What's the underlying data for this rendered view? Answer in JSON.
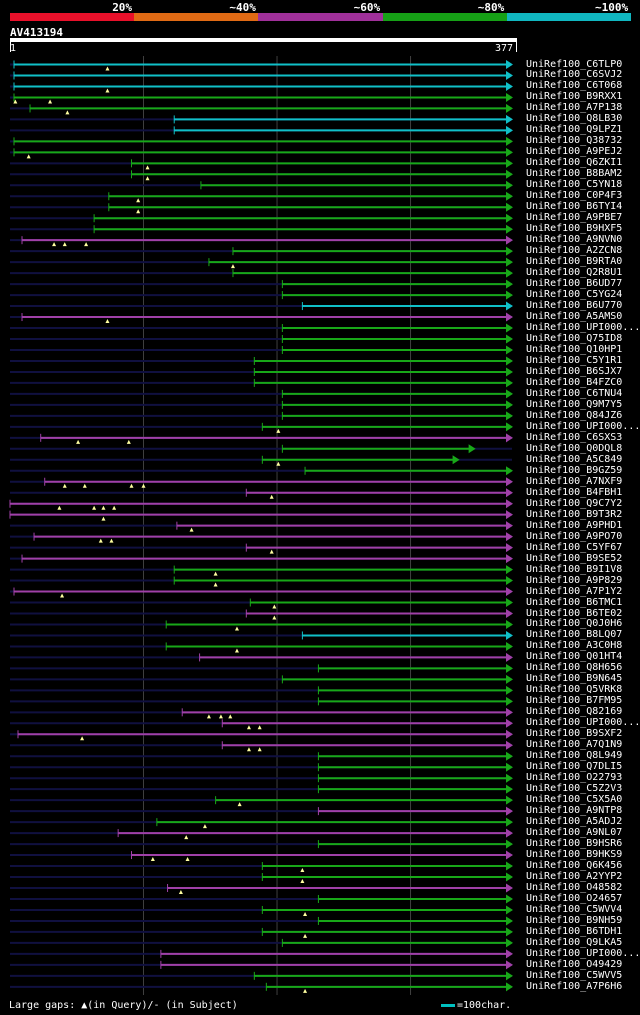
{
  "title": "AV413194",
  "legend": [
    {
      "label": "20%",
      "color": "#e8102a"
    },
    {
      "label": "~40%",
      "color": "#e06a14"
    },
    {
      "label": "~60%",
      "color": "#a0309a"
    },
    {
      "label": "~80%",
      "color": "#16a016"
    },
    {
      "label": "~100%",
      "color": "#10b6c0"
    }
  ],
  "axis": {
    "start": "1",
    "end": "377",
    "query_length": 377
  },
  "colors": {
    "cyan": "#10c0c8",
    "green": "#18a818",
    "magenta": "#a040a8",
    "faint": "#101040",
    "grid": "#404040"
  },
  "footer": "Large gaps: ▲(in Query)/- (in Subject)",
  "scale_label": "=100char.",
  "chart_data": {
    "type": "alignment",
    "hits": [
      {
        "name": "UniRef100_C6TLP0",
        "color": "cyan",
        "start": 4,
        "end": 377,
        "arrow": true,
        "marks": [
          74
        ]
      },
      {
        "name": "UniRef100_C6SVJ2",
        "color": "cyan",
        "start": 4,
        "end": 377,
        "arrow": true,
        "marks": []
      },
      {
        "name": "UniRef100_C6T068",
        "color": "cyan",
        "start": 4,
        "end": 377,
        "arrow": true,
        "marks": [
          74
        ]
      },
      {
        "name": "UniRef100_B9RXX1",
        "color": "green",
        "start": 4,
        "end": 377,
        "arrow": true,
        "marks": [
          5,
          31
        ]
      },
      {
        "name": "UniRef100_A7P138",
        "color": "green",
        "start": 16,
        "end": 377,
        "arrow": true,
        "marks": [
          44
        ]
      },
      {
        "name": "UniRef100_Q8LB30",
        "color": "cyan",
        "start": 124,
        "end": 377,
        "arrow": true,
        "marks": []
      },
      {
        "name": "UniRef100_Q9LPZ1",
        "color": "cyan",
        "start": 124,
        "end": 377,
        "arrow": true,
        "marks": []
      },
      {
        "name": "UniRef100_Q38732",
        "color": "green",
        "start": 4,
        "end": 377,
        "arrow": true,
        "marks": []
      },
      {
        "name": "UniRef100_A9PEJ2",
        "color": "green",
        "start": 4,
        "end": 377,
        "arrow": true,
        "marks": [
          15
        ]
      },
      {
        "name": "UniRef100_Q6ZKI1",
        "color": "green",
        "start": 92,
        "end": 377,
        "arrow": true,
        "marks": [
          104
        ]
      },
      {
        "name": "UniRef100_B8BAM2",
        "color": "green",
        "start": 92,
        "end": 377,
        "arrow": true,
        "marks": [
          104
        ]
      },
      {
        "name": "UniRef100_C5YN18",
        "color": "green",
        "start": 144,
        "end": 377,
        "arrow": true,
        "marks": []
      },
      {
        "name": "UniRef100_C0P4F3",
        "color": "green",
        "start": 75,
        "end": 377,
        "arrow": true,
        "marks": [
          97
        ]
      },
      {
        "name": "UniRef100_B6TYI4",
        "color": "green",
        "start": 75,
        "end": 377,
        "arrow": true,
        "marks": [
          97
        ]
      },
      {
        "name": "UniRef100_A9PBE7",
        "color": "green",
        "start": 64,
        "end": 377,
        "arrow": true,
        "marks": []
      },
      {
        "name": "UniRef100_B9HXF5",
        "color": "green",
        "start": 64,
        "end": 377,
        "arrow": true,
        "marks": []
      },
      {
        "name": "UniRef100_A9NVN0",
        "color": "magenta",
        "start": 10,
        "end": 377,
        "arrow": true,
        "marks": [
          34,
          42,
          58
        ]
      },
      {
        "name": "UniRef100_A2ZCN8",
        "color": "green",
        "start": 168,
        "end": 377,
        "arrow": true,
        "marks": []
      },
      {
        "name": "UniRef100_B9RTA0",
        "color": "green",
        "start": 150,
        "end": 377,
        "arrow": true,
        "marks": [
          168
        ]
      },
      {
        "name": "UniRef100_Q2R8U1",
        "color": "green",
        "start": 168,
        "end": 377,
        "arrow": true,
        "marks": []
      },
      {
        "name": "UniRef100_B6UD77",
        "color": "green",
        "start": 205,
        "end": 377,
        "arrow": true,
        "marks": []
      },
      {
        "name": "UniRef100_C5YG24",
        "color": "green",
        "start": 205,
        "end": 377,
        "arrow": true,
        "marks": []
      },
      {
        "name": "UniRef100_B6U770",
        "color": "cyan",
        "start": 220,
        "end": 377,
        "arrow": true,
        "marks": []
      },
      {
        "name": "UniRef100_A5AMS0",
        "color": "magenta",
        "start": 10,
        "end": 377,
        "arrow": true,
        "marks": [
          74
        ]
      },
      {
        "name": "UniRef100_UPI000...",
        "color": "green",
        "start": 205,
        "end": 377,
        "arrow": true,
        "marks": []
      },
      {
        "name": "UniRef100_Q75ID8",
        "color": "green",
        "start": 205,
        "end": 377,
        "arrow": true,
        "marks": []
      },
      {
        "name": "UniRef100_Q10HP1",
        "color": "green",
        "start": 205,
        "end": 377,
        "arrow": true,
        "marks": []
      },
      {
        "name": "UniRef100_C5Y1R1",
        "color": "green",
        "start": 184,
        "end": 377,
        "arrow": true,
        "marks": []
      },
      {
        "name": "UniRef100_B6SJX7",
        "color": "green",
        "start": 184,
        "end": 377,
        "arrow": true,
        "marks": []
      },
      {
        "name": "UniRef100_B4FZC0",
        "color": "green",
        "start": 184,
        "end": 377,
        "arrow": true,
        "marks": []
      },
      {
        "name": "UniRef100_C6TNU4",
        "color": "green",
        "start": 205,
        "end": 377,
        "arrow": true,
        "marks": []
      },
      {
        "name": "UniRef100_Q9M7Y5",
        "color": "green",
        "start": 205,
        "end": 377,
        "arrow": true,
        "marks": []
      },
      {
        "name": "UniRef100_Q84JZ6",
        "color": "green",
        "start": 205,
        "end": 377,
        "arrow": true,
        "marks": []
      },
      {
        "name": "UniRef100_UPI000...",
        "color": "green",
        "start": 190,
        "end": 377,
        "arrow": true,
        "marks": [
          202
        ]
      },
      {
        "name": "UniRef100_C6SXS3",
        "color": "magenta",
        "start": 24,
        "end": 377,
        "arrow": true,
        "marks": [
          52,
          90
        ]
      },
      {
        "name": "UniRef100_Q0DQL8",
        "color": "green",
        "start": 205,
        "end": 349,
        "arrow": true,
        "marks": []
      },
      {
        "name": "UniRef100_A5C849",
        "color": "green",
        "start": 190,
        "end": 337,
        "arrow": true,
        "marks": [
          202
        ]
      },
      {
        "name": "UniRef100_B9GZ59",
        "color": "green",
        "start": 222,
        "end": 377,
        "arrow": true,
        "marks": []
      },
      {
        "name": "UniRef100_A7NXF9",
        "color": "magenta",
        "start": 27,
        "end": 377,
        "arrow": true,
        "marks": [
          42,
          57,
          92,
          101
        ]
      },
      {
        "name": "UniRef100_B4FBH1",
        "color": "magenta",
        "start": 178,
        "end": 377,
        "arrow": true,
        "marks": [
          197
        ]
      },
      {
        "name": "UniRef100_Q9C7Y2",
        "color": "magenta",
        "start": 1,
        "end": 377,
        "arrow": true,
        "marks": [
          38,
          64,
          71,
          79
        ]
      },
      {
        "name": "UniRef100_B9T3R2",
        "color": "magenta",
        "start": 1,
        "end": 377,
        "arrow": true,
        "marks": [
          71
        ]
      },
      {
        "name": "UniRef100_A9PHD1",
        "color": "magenta",
        "start": 126,
        "end": 377,
        "arrow": true,
        "marks": [
          137
        ]
      },
      {
        "name": "UniRef100_A9PO70",
        "color": "magenta",
        "start": 19,
        "end": 377,
        "arrow": true,
        "marks": [
          69,
          77
        ]
      },
      {
        "name": "UniRef100_C5YF67",
        "color": "magenta",
        "start": 178,
        "end": 377,
        "arrow": true,
        "marks": [
          197
        ]
      },
      {
        "name": "UniRef100_B9SE52",
        "color": "magenta",
        "start": 10,
        "end": 377,
        "arrow": true,
        "marks": []
      },
      {
        "name": "UniRef100_B9I1V8",
        "color": "green",
        "start": 124,
        "end": 377,
        "arrow": true,
        "marks": [
          155
        ]
      },
      {
        "name": "UniRef100_A9P829",
        "color": "green",
        "start": 124,
        "end": 377,
        "arrow": true,
        "marks": [
          155
        ]
      },
      {
        "name": "UniRef100_A7P1Y2",
        "color": "magenta",
        "start": 4,
        "end": 377,
        "arrow": true,
        "marks": [
          40
        ]
      },
      {
        "name": "UniRef100_B6TMC1",
        "color": "green",
        "start": 181,
        "end": 377,
        "arrow": true,
        "marks": [
          199
        ]
      },
      {
        "name": "UniRef100_B6TE02",
        "color": "magenta",
        "start": 178,
        "end": 377,
        "arrow": true,
        "marks": [
          199
        ]
      },
      {
        "name": "UniRef100_Q0J0H6",
        "color": "green",
        "start": 118,
        "end": 377,
        "arrow": true,
        "marks": [
          171
        ]
      },
      {
        "name": "UniRef100_B8LQ07",
        "color": "cyan",
        "start": 220,
        "end": 377,
        "arrow": true,
        "marks": []
      },
      {
        "name": "UniRef100_A3C0H8",
        "color": "green",
        "start": 118,
        "end": 377,
        "arrow": true,
        "marks": [
          171
        ]
      },
      {
        "name": "UniRef100_Q01HT4",
        "color": "magenta",
        "start": 143,
        "end": 377,
        "arrow": true,
        "marks": []
      },
      {
        "name": "UniRef100_Q8H656",
        "color": "green",
        "start": 232,
        "end": 377,
        "arrow": true,
        "marks": []
      },
      {
        "name": "UniRef100_B9N645",
        "color": "green",
        "start": 205,
        "end": 377,
        "arrow": true,
        "marks": []
      },
      {
        "name": "UniRef100_Q5VRK8",
        "color": "green",
        "start": 232,
        "end": 377,
        "arrow": true,
        "marks": []
      },
      {
        "name": "UniRef100_B7FM95",
        "color": "green",
        "start": 232,
        "end": 377,
        "arrow": true,
        "marks": []
      },
      {
        "name": "UniRef100_Q82169",
        "color": "magenta",
        "start": 130,
        "end": 377,
        "arrow": true,
        "marks": [
          150,
          159,
          166
        ]
      },
      {
        "name": "UniRef100_UPI000...",
        "color": "magenta",
        "start": 160,
        "end": 377,
        "arrow": true,
        "marks": [
          180,
          188
        ]
      },
      {
        "name": "UniRef100_B9SXF2",
        "color": "magenta",
        "start": 7,
        "end": 377,
        "arrow": true,
        "marks": [
          55
        ]
      },
      {
        "name": "UniRef100_A7Q1N9",
        "color": "magenta",
        "start": 160,
        "end": 377,
        "arrow": true,
        "marks": [
          180,
          188
        ]
      },
      {
        "name": "UniRef100_Q8L949",
        "color": "green",
        "start": 232,
        "end": 377,
        "arrow": true,
        "marks": []
      },
      {
        "name": "UniRef100_Q7DLI5",
        "color": "green",
        "start": 232,
        "end": 377,
        "arrow": true,
        "marks": []
      },
      {
        "name": "UniRef100_O22793",
        "color": "green",
        "start": 232,
        "end": 377,
        "arrow": true,
        "marks": []
      },
      {
        "name": "UniRef100_C5Z2V3",
        "color": "green",
        "start": 232,
        "end": 377,
        "arrow": true,
        "marks": []
      },
      {
        "name": "UniRef100_C5X5A0",
        "color": "green",
        "start": 155,
        "end": 377,
        "arrow": true,
        "marks": [
          173
        ]
      },
      {
        "name": "UniRef100_A9NTP8",
        "color": "magenta",
        "start": 232,
        "end": 377,
        "arrow": true,
        "marks": []
      },
      {
        "name": "UniRef100_A5ADJ2",
        "color": "green",
        "start": 111,
        "end": 377,
        "arrow": true,
        "marks": [
          147
        ]
      },
      {
        "name": "UniRef100_A9NL07",
        "color": "magenta",
        "start": 82,
        "end": 377,
        "arrow": true,
        "marks": [
          133
        ]
      },
      {
        "name": "UniRef100_B9HSR6",
        "color": "green",
        "start": 232,
        "end": 377,
        "arrow": true,
        "marks": []
      },
      {
        "name": "UniRef100_B9HKS9",
        "color": "magenta",
        "start": 92,
        "end": 377,
        "arrow": true,
        "marks": [
          108,
          134
        ]
      },
      {
        "name": "UniRef100_Q6K456",
        "color": "green",
        "start": 190,
        "end": 377,
        "arrow": true,
        "marks": [
          220
        ]
      },
      {
        "name": "UniRef100_A2YYP2",
        "color": "green",
        "start": 190,
        "end": 377,
        "arrow": true,
        "marks": [
          220
        ]
      },
      {
        "name": "UniRef100_O48582",
        "color": "magenta",
        "start": 119,
        "end": 377,
        "arrow": true,
        "marks": [
          129
        ]
      },
      {
        "name": "UniRef100_O24657",
        "color": "green",
        "start": 232,
        "end": 377,
        "arrow": true,
        "marks": []
      },
      {
        "name": "UniRef100_C5WVV4",
        "color": "green",
        "start": 190,
        "end": 377,
        "arrow": true,
        "marks": [
          222
        ]
      },
      {
        "name": "UniRef100_B9NH59",
        "color": "green",
        "start": 232,
        "end": 377,
        "arrow": true,
        "marks": []
      },
      {
        "name": "UniRef100_B6TDH1",
        "color": "green",
        "start": 190,
        "end": 377,
        "arrow": true,
        "marks": [
          222
        ]
      },
      {
        "name": "UniRef100_Q9LKA5",
        "color": "green",
        "start": 205,
        "end": 377,
        "arrow": true,
        "marks": []
      },
      {
        "name": "UniRef100_UPI000...",
        "color": "magenta",
        "start": 114,
        "end": 377,
        "arrow": true,
        "marks": []
      },
      {
        "name": "UniRef100_O49429",
        "color": "magenta",
        "start": 114,
        "end": 377,
        "arrow": true,
        "marks": []
      },
      {
        "name": "UniRef100_C5WVV5",
        "color": "green",
        "start": 184,
        "end": 377,
        "arrow": true,
        "marks": []
      },
      {
        "name": "UniRef100_A7P6H6",
        "color": "green",
        "start": 193,
        "end": 377,
        "arrow": true,
        "marks": [
          222
        ]
      }
    ]
  }
}
